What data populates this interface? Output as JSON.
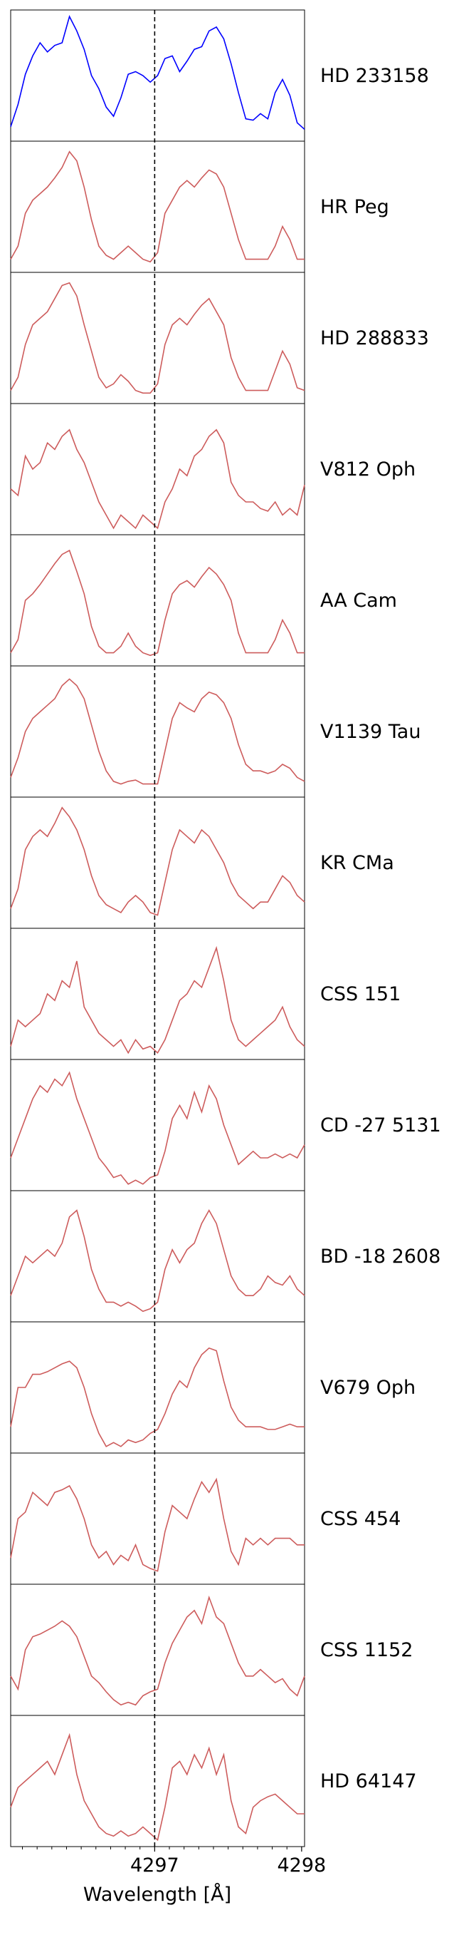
{
  "chart_data": {
    "type": "line",
    "x": [
      4296.02,
      4296.07,
      4296.12,
      4296.17,
      4296.22,
      4296.27,
      4296.32,
      4296.37,
      4296.42,
      4296.47,
      4296.52,
      4296.57,
      4296.62,
      4296.67,
      4296.72,
      4296.77,
      4296.82,
      4296.87,
      4296.92,
      4296.97,
      4297.02,
      4297.07,
      4297.12,
      4297.17,
      4297.22,
      4297.27,
      4297.32,
      4297.37,
      4297.42,
      4297.47,
      4297.52,
      4297.57,
      4297.62,
      4297.67,
      4297.72,
      4297.77,
      4297.82,
      4297.87,
      4297.92,
      4297.97,
      4298.02
    ],
    "xlim": [
      4296.02,
      4298.02
    ],
    "xticks": [
      4297,
      4298
    ],
    "xminorticks": [
      4296.1,
      4296.2,
      4296.3,
      4296.4,
      4296.5,
      4296.6,
      4296.7,
      4296.8,
      4296.9,
      4297.1,
      4297.2,
      4297.3,
      4297.4,
      4297.5,
      4297.6,
      4297.7,
      4297.8,
      4297.9
    ],
    "xlabel": "Wavelength [Å]",
    "vline": 4297,
    "ylim": [
      0,
      1
    ],
    "series": [
      {
        "name": "HD 233158",
        "color": "#0000ff",
        "values": [
          0.11,
          0.28,
          0.51,
          0.65,
          0.75,
          0.68,
          0.73,
          0.75,
          0.95,
          0.84,
          0.7,
          0.5,
          0.4,
          0.26,
          0.19,
          0.33,
          0.51,
          0.53,
          0.5,
          0.45,
          0.5,
          0.63,
          0.65,
          0.53,
          0.61,
          0.7,
          0.72,
          0.84,
          0.87,
          0.78,
          0.59,
          0.37,
          0.17,
          0.16,
          0.21,
          0.17,
          0.37,
          0.47,
          0.35,
          0.14,
          0.09
        ]
      },
      {
        "name": "HR Peg",
        "color": "#cd5c5c",
        "values": [
          0.1,
          0.2,
          0.45,
          0.55,
          0.6,
          0.65,
          0.72,
          0.8,
          0.92,
          0.85,
          0.65,
          0.4,
          0.2,
          0.13,
          0.1,
          0.15,
          0.2,
          0.15,
          0.1,
          0.08,
          0.15,
          0.45,
          0.55,
          0.65,
          0.7,
          0.65,
          0.72,
          0.78,
          0.75,
          0.65,
          0.45,
          0.25,
          0.1,
          0.1,
          0.1,
          0.1,
          0.2,
          0.35,
          0.25,
          0.1,
          0.1
        ]
      },
      {
        "name": "HD 288833",
        "color": "#cd5c5c",
        "values": [
          0.1,
          0.2,
          0.45,
          0.6,
          0.65,
          0.7,
          0.8,
          0.9,
          0.92,
          0.82,
          0.6,
          0.4,
          0.2,
          0.12,
          0.15,
          0.22,
          0.17,
          0.1,
          0.08,
          0.08,
          0.15,
          0.45,
          0.6,
          0.65,
          0.6,
          0.68,
          0.75,
          0.8,
          0.7,
          0.6,
          0.35,
          0.2,
          0.1,
          0.1,
          0.1,
          0.1,
          0.25,
          0.4,
          0.3,
          0.12,
          0.1
        ]
      },
      {
        "name": "V812 Oph",
        "color": "#cd5c5c",
        "values": [
          0.35,
          0.3,
          0.6,
          0.5,
          0.55,
          0.7,
          0.65,
          0.75,
          0.8,
          0.65,
          0.55,
          0.4,
          0.25,
          0.15,
          0.05,
          0.15,
          0.1,
          0.05,
          0.15,
          0.1,
          0.05,
          0.25,
          0.35,
          0.5,
          0.45,
          0.6,
          0.65,
          0.75,
          0.8,
          0.7,
          0.4,
          0.3,
          0.25,
          0.25,
          0.2,
          0.18,
          0.25,
          0.15,
          0.2,
          0.15,
          0.38
        ]
      },
      {
        "name": "AA Cam",
        "color": "#cd5c5c",
        "values": [
          0.1,
          0.2,
          0.5,
          0.55,
          0.62,
          0.7,
          0.78,
          0.85,
          0.88,
          0.72,
          0.55,
          0.3,
          0.15,
          0.1,
          0.1,
          0.15,
          0.25,
          0.15,
          0.1,
          0.08,
          0.1,
          0.35,
          0.55,
          0.62,
          0.65,
          0.6,
          0.68,
          0.75,
          0.7,
          0.62,
          0.5,
          0.25,
          0.1,
          0.1,
          0.1,
          0.1,
          0.2,
          0.35,
          0.25,
          0.1,
          0.1
        ]
      },
      {
        "name": "V1139 Tau",
        "color": "#cd5c5c",
        "values": [
          0.15,
          0.3,
          0.5,
          0.6,
          0.65,
          0.7,
          0.75,
          0.85,
          0.9,
          0.85,
          0.75,
          0.55,
          0.35,
          0.2,
          0.12,
          0.1,
          0.12,
          0.13,
          0.1,
          0.1,
          0.1,
          0.35,
          0.6,
          0.72,
          0.68,
          0.65,
          0.75,
          0.8,
          0.78,
          0.72,
          0.6,
          0.4,
          0.25,
          0.2,
          0.2,
          0.18,
          0.2,
          0.25,
          0.22,
          0.15,
          0.12
        ]
      },
      {
        "name": "KR CMa",
        "color": "#cd5c5c",
        "values": [
          0.15,
          0.3,
          0.6,
          0.7,
          0.75,
          0.7,
          0.8,
          0.92,
          0.85,
          0.75,
          0.6,
          0.4,
          0.25,
          0.18,
          0.15,
          0.12,
          0.2,
          0.25,
          0.2,
          0.12,
          0.1,
          0.35,
          0.6,
          0.75,
          0.7,
          0.65,
          0.75,
          0.7,
          0.6,
          0.5,
          0.35,
          0.25,
          0.2,
          0.15,
          0.2,
          0.2,
          0.3,
          0.4,
          0.35,
          0.25,
          0.2
        ]
      },
      {
        "name": "CSS 151",
        "color": "#cd5c5c",
        "values": [
          0.1,
          0.3,
          0.25,
          0.3,
          0.35,
          0.5,
          0.45,
          0.6,
          0.55,
          0.75,
          0.4,
          0.3,
          0.2,
          0.15,
          0.1,
          0.15,
          0.05,
          0.15,
          0.08,
          0.1,
          0.05,
          0.15,
          0.3,
          0.45,
          0.5,
          0.6,
          0.55,
          0.7,
          0.85,
          0.6,
          0.3,
          0.15,
          0.1,
          0.15,
          0.2,
          0.25,
          0.3,
          0.4,
          0.25,
          0.15,
          0.1
        ]
      },
      {
        "name": "CD -27 5131",
        "color": "#cd5c5c",
        "values": [
          0.25,
          0.4,
          0.55,
          0.7,
          0.8,
          0.75,
          0.85,
          0.8,
          0.9,
          0.7,
          0.55,
          0.4,
          0.25,
          0.18,
          0.1,
          0.12,
          0.05,
          0.08,
          0.05,
          0.1,
          0.12,
          0.3,
          0.55,
          0.65,
          0.55,
          0.75,
          0.6,
          0.8,
          0.7,
          0.5,
          0.35,
          0.2,
          0.25,
          0.3,
          0.25,
          0.25,
          0.28,
          0.25,
          0.28,
          0.25,
          0.35
        ]
      },
      {
        "name": "BD -18 2608",
        "color": "#cd5c5c",
        "values": [
          0.2,
          0.35,
          0.5,
          0.45,
          0.5,
          0.55,
          0.5,
          0.6,
          0.8,
          0.85,
          0.65,
          0.4,
          0.25,
          0.15,
          0.15,
          0.12,
          0.15,
          0.12,
          0.08,
          0.1,
          0.15,
          0.4,
          0.55,
          0.45,
          0.55,
          0.6,
          0.75,
          0.85,
          0.75,
          0.55,
          0.35,
          0.25,
          0.2,
          0.2,
          0.25,
          0.35,
          0.3,
          0.28,
          0.35,
          0.25,
          0.2
        ]
      },
      {
        "name": "V679 Oph",
        "color": "#cd5c5c",
        "values": [
          0.2,
          0.5,
          0.5,
          0.6,
          0.6,
          0.62,
          0.65,
          0.68,
          0.7,
          0.65,
          0.5,
          0.3,
          0.15,
          0.05,
          0.08,
          0.05,
          0.1,
          0.08,
          0.1,
          0.15,
          0.18,
          0.3,
          0.45,
          0.55,
          0.5,
          0.65,
          0.75,
          0.8,
          0.78,
          0.55,
          0.35,
          0.25,
          0.2,
          0.2,
          0.2,
          0.18,
          0.18,
          0.2,
          0.22,
          0.2,
          0.2
        ]
      },
      {
        "name": "CSS 454",
        "color": "#cd5c5c",
        "values": [
          0.2,
          0.5,
          0.55,
          0.7,
          0.65,
          0.6,
          0.7,
          0.72,
          0.75,
          0.65,
          0.5,
          0.3,
          0.2,
          0.25,
          0.15,
          0.22,
          0.18,
          0.3,
          0.15,
          0.12,
          0.1,
          0.4,
          0.6,
          0.55,
          0.5,
          0.65,
          0.78,
          0.7,
          0.8,
          0.5,
          0.25,
          0.15,
          0.35,
          0.3,
          0.35,
          0.3,
          0.35,
          0.35,
          0.35,
          0.3,
          0.3
        ]
      },
      {
        "name": "CSS 1152",
        "color": "#cd5c5c",
        "values": [
          0.3,
          0.2,
          0.5,
          0.6,
          0.62,
          0.65,
          0.68,
          0.72,
          0.68,
          0.6,
          0.45,
          0.3,
          0.25,
          0.18,
          0.12,
          0.08,
          0.1,
          0.08,
          0.15,
          0.18,
          0.2,
          0.4,
          0.55,
          0.65,
          0.75,
          0.8,
          0.7,
          0.9,
          0.75,
          0.7,
          0.55,
          0.4,
          0.3,
          0.3,
          0.35,
          0.3,
          0.25,
          0.28,
          0.2,
          0.15,
          0.3
        ]
      },
      {
        "name": "HD 64147",
        "color": "#cd5c5c",
        "values": [
          0.3,
          0.45,
          0.5,
          0.55,
          0.6,
          0.65,
          0.55,
          0.7,
          0.85,
          0.55,
          0.35,
          0.25,
          0.15,
          0.1,
          0.08,
          0.12,
          0.08,
          0.1,
          0.15,
          0.1,
          0.05,
          0.3,
          0.6,
          0.65,
          0.55,
          0.7,
          0.6,
          0.75,
          0.55,
          0.7,
          0.35,
          0.15,
          0.1,
          0.3,
          0.35,
          0.38,
          0.4,
          0.35,
          0.3,
          0.25,
          0.25
        ]
      }
    ]
  }
}
